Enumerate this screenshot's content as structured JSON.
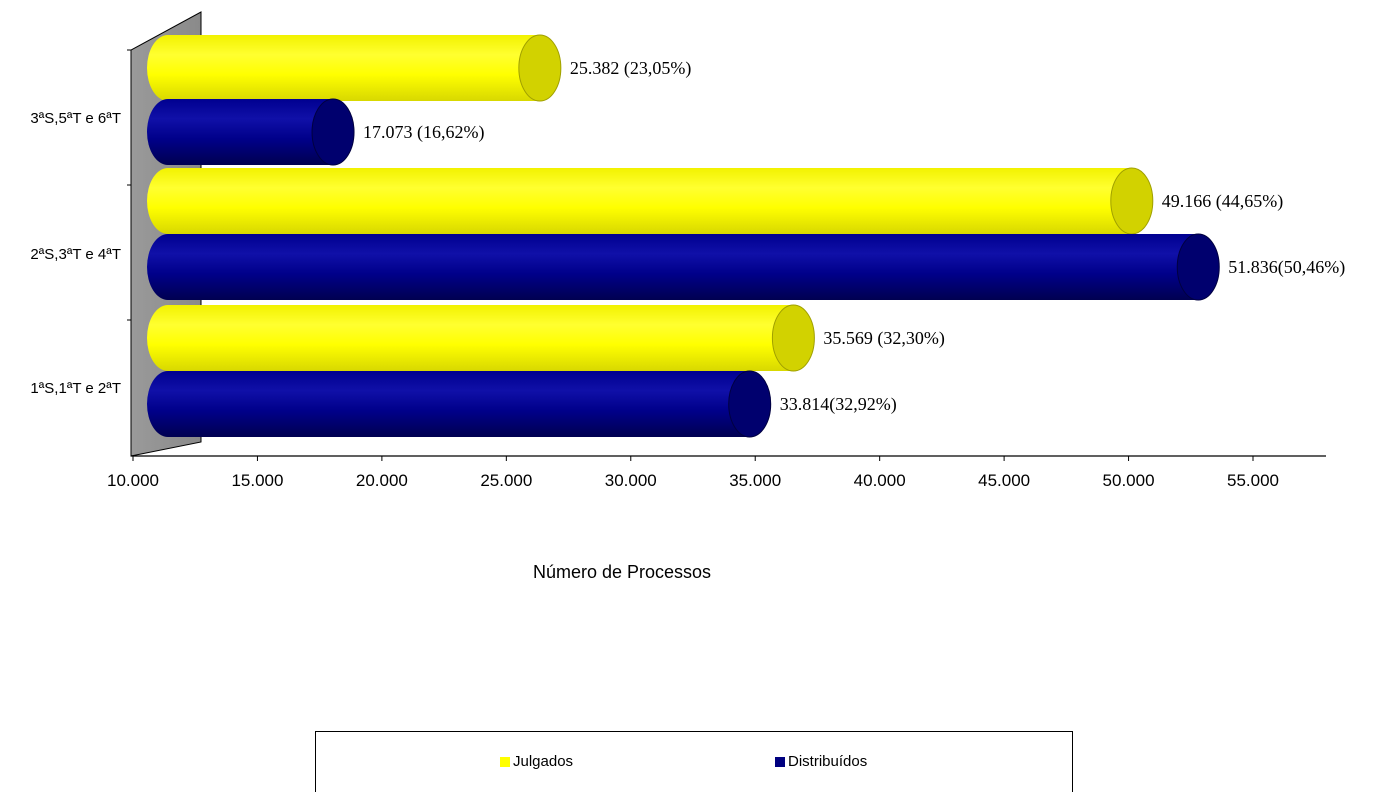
{
  "chart_data": {
    "type": "bar",
    "orientation": "horizontal",
    "style": "3d-cylinder",
    "categories": [
      "1ªS,1ªT e 2ªT",
      "2ªS,3ªT e 4ªT",
      "3ªS,5ªT e 6ªT"
    ],
    "series": [
      {
        "name": "Distribuídos",
        "color": "#000080",
        "values": [
          33814,
          51836,
          17073
        ],
        "labels": [
          "33.814(32,92%)",
          "51.836(50,46%)",
          "17.073 (16,62%)"
        ]
      },
      {
        "name": "Julgados",
        "color": "#FFFF00",
        "values": [
          35569,
          49166,
          25382
        ],
        "labels": [
          "35.569 (32,30%)",
          "49.166 (44,65%)",
          "25.382 (23,05%)"
        ]
      }
    ],
    "xlabel": "Número de Processos",
    "xlim": [
      10000,
      55000
    ],
    "x_ticks": [
      10000,
      15000,
      20000,
      25000,
      30000,
      35000,
      40000,
      45000,
      50000,
      55000
    ],
    "x_tick_labels": [
      "10.000",
      "15.000",
      "20.000",
      "25.000",
      "30.000",
      "35.000",
      "40.000",
      "45.000",
      "50.000",
      "55.000"
    ],
    "grid": false,
    "legend_position": "bottom"
  },
  "legend": {
    "items": [
      {
        "label": "Julgados",
        "color": "#FFFF00"
      },
      {
        "label": "Distribuídos",
        "color": "#000080"
      }
    ]
  }
}
